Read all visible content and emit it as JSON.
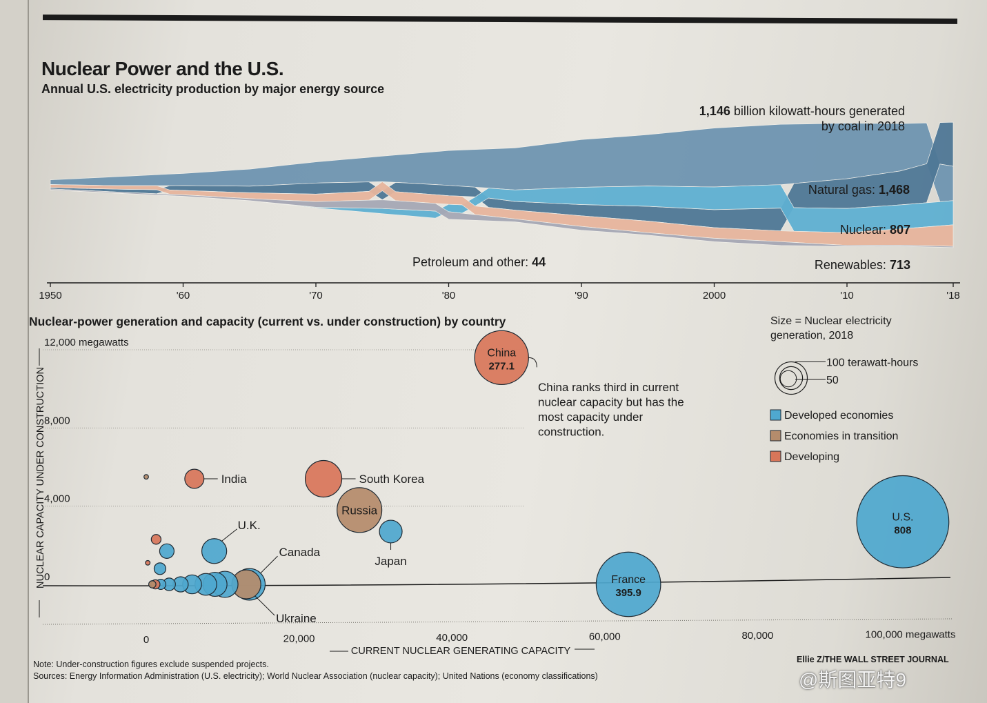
{
  "title": "Nuclear Power and the U.S.",
  "subtitle": "Annual U.S. electricity production by major energy source",
  "section2_title": "Nuclear-power generation and capacity (current vs. under construction) by country",
  "note": "Note: Under-construction figures exclude suspended projects.",
  "sources": "Sources: Energy Information Administration (U.S. electricity); World Nuclear Association (nuclear capacity); United Nations (economy classifications)",
  "credit": "Ellie Z/THE WALL STREET JOURNAL",
  "watermark": "@斯图亚特9",
  "colors": {
    "coal": "#6f95b1",
    "gas": "#4f7896",
    "nuclear": "#5fb0d2",
    "renewables": "#e7b59d",
    "petroleum": "#a6a8b5",
    "developed": "#4fa8cf",
    "transition": "#b58c6c",
    "developing": "#d8765a"
  },
  "chart_data": [
    {
      "type": "area",
      "title": "Nuclear Power and the U.S.",
      "subtitle": "Annual U.S. electricity production by major energy source",
      "x_ticks": [
        "1950",
        "'60",
        "'70",
        "'80",
        "'90",
        "2000",
        "'10",
        "'18"
      ],
      "xlim": [
        1950,
        2018
      ],
      "series": [
        {
          "name": "Coal",
          "label_value": "1,146",
          "label_text": "billion kilowatt-hours generated",
          "label_text2": "by coal in 2018",
          "x": [
            1950,
            1955,
            1960,
            1965,
            1970,
            1975,
            1980,
            1985,
            1990,
            1995,
            2000,
            2005,
            2010,
            2014,
            2018
          ],
          "values": [
            155,
            300,
            405,
            570,
            705,
            850,
            1160,
            1400,
            1590,
            1710,
            1965,
            2010,
            1850,
            1580,
            1146
          ]
        },
        {
          "name": "Natural gas",
          "label": "Natural gas:",
          "label_value": "1,468",
          "x": [
            1950,
            1955,
            1960,
            1965,
            1970,
            1975,
            1980,
            1985,
            1990,
            1995,
            2000,
            2005,
            2010,
            2014,
            2018
          ],
          "values": [
            45,
            95,
            160,
            220,
            370,
            300,
            345,
            290,
            375,
            495,
            600,
            760,
            990,
            1130,
            1468
          ]
        },
        {
          "name": "Nuclear",
          "label": "Nuclear:",
          "label_value": "807",
          "x": [
            1950,
            1955,
            1960,
            1965,
            1970,
            1975,
            1980,
            1985,
            1990,
            1995,
            2000,
            2005,
            2010,
            2014,
            2018
          ],
          "values": [
            0,
            0,
            1,
            4,
            22,
            172,
            250,
            385,
            575,
            675,
            755,
            780,
            805,
            800,
            807
          ]
        },
        {
          "name": "Renewables",
          "label": "Renewables:",
          "label_value": "713",
          "x": [
            1950,
            1955,
            1960,
            1965,
            1970,
            1975,
            1980,
            1985,
            1990,
            1995,
            2000,
            2005,
            2010,
            2014,
            2018
          ],
          "values": [
            100,
            118,
            148,
            195,
            250,
            305,
            285,
            290,
            355,
            385,
            355,
            360,
            425,
            540,
            713
          ]
        },
        {
          "name": "Petroleum and other",
          "label": "Petroleum and other:",
          "label_value": "44",
          "x": [
            1950,
            1955,
            1960,
            1965,
            1970,
            1975,
            1980,
            1985,
            1990,
            1995,
            2000,
            2005,
            2010,
            2014,
            2018
          ],
          "values": [
            34,
            37,
            48,
            65,
            185,
            290,
            250,
            100,
            125,
            80,
            115,
            125,
            40,
            35,
            44
          ]
        }
      ]
    },
    {
      "type": "scatter",
      "title": "Nuclear-power generation and capacity (current vs. under construction) by country",
      "xlabel": "CURRENT NUCLEAR GENERATING CAPACITY",
      "ylabel": "NUCLEAR CAPACITY UNDER CONSTRUCTION",
      "x_ticks": [
        "0",
        "20,000",
        "40,000",
        "60,000",
        "80,000",
        "100,000 megawatts"
      ],
      "x_tick_values": [
        0,
        20000,
        40000,
        60000,
        80000,
        100000
      ],
      "y_ticks": [
        "0",
        "4,000",
        "8,000",
        "12,000 megawatts"
      ],
      "y_tick_values": [
        0,
        4000,
        8000,
        12000
      ],
      "xlim": [
        -2000,
        106000
      ],
      "ylim": [
        -2000,
        12500
      ],
      "size_legend_title": "Size = Nuclear electricity generation, 2018",
      "size_legend": [
        {
          "value": 100,
          "label": "100 terawatt-hours"
        },
        {
          "value": 50,
          "label": "50"
        }
      ],
      "legend": [
        {
          "key": "developed",
          "label": "Developed economies"
        },
        {
          "key": "transition",
          "label": "Economies in transition"
        },
        {
          "key": "developing",
          "label": "Developing"
        }
      ],
      "annotation": [
        "China ranks third in current",
        "nuclear capacity but has the",
        "most capacity under",
        "construction."
      ],
      "points": [
        {
          "name": "China",
          "value_label": "277.1",
          "x": 46500,
          "y": 11600,
          "generation": 277.1,
          "group": "developing",
          "label_inside": true
        },
        {
          "name": "France",
          "value_label": "395.9",
          "x": 63100,
          "y": 0,
          "generation": 395.9,
          "group": "developed",
          "label_inside": true
        },
        {
          "name": "U.S.",
          "value_label": "808",
          "x": 99000,
          "y": 3200,
          "generation": 808,
          "group": "developed",
          "label_inside": true
        },
        {
          "name": "India",
          "x": 6300,
          "y": 5400,
          "generation": 35,
          "group": "developing"
        },
        {
          "name": "South Korea",
          "x": 23200,
          "y": 5400,
          "generation": 127,
          "group": "developing"
        },
        {
          "name": "Russia",
          "x": 27900,
          "y": 3800,
          "generation": 191,
          "group": "transition",
          "label_inside": true
        },
        {
          "name": "Japan",
          "x": 32000,
          "y": 2700,
          "generation": 49,
          "group": "developed"
        },
        {
          "name": "U.K.",
          "x": 8900,
          "y": 1700,
          "generation": 59,
          "group": "developed"
        },
        {
          "name": "Canada",
          "x": 13500,
          "y": 0,
          "generation": 95,
          "group": "developed"
        },
        {
          "name": "Ukraine",
          "x": 13100,
          "y": 0,
          "generation": 80,
          "group": "transition"
        },
        {
          "x": 0,
          "y": 5500,
          "generation": 2,
          "group": "transition"
        },
        {
          "x": 1300,
          "y": 2300,
          "generation": 9,
          "group": "developing"
        },
        {
          "x": 2700,
          "y": 1700,
          "generation": 20,
          "group": "developed"
        },
        {
          "x": 1800,
          "y": 800,
          "generation": 13,
          "group": "developed"
        },
        {
          "x": 200,
          "y": 1100,
          "generation": 2,
          "group": "developing"
        },
        {
          "x": 800,
          "y": 0,
          "generation": 5,
          "group": "transition"
        },
        {
          "x": 1200,
          "y": 0,
          "generation": 8,
          "group": "developing"
        },
        {
          "x": 1900,
          "y": 0,
          "generation": 10,
          "group": "developed"
        },
        {
          "x": 3000,
          "y": 0,
          "generation": 15,
          "group": "developed"
        },
        {
          "x": 4500,
          "y": 0,
          "generation": 22,
          "group": "developed"
        },
        {
          "x": 6000,
          "y": 0,
          "generation": 34,
          "group": "developed"
        },
        {
          "x": 7800,
          "y": 0,
          "generation": 45,
          "group": "developed"
        },
        {
          "x": 9000,
          "y": 0,
          "generation": 55,
          "group": "developed"
        },
        {
          "x": 10300,
          "y": 0,
          "generation": 65,
          "group": "developed"
        }
      ]
    }
  ]
}
